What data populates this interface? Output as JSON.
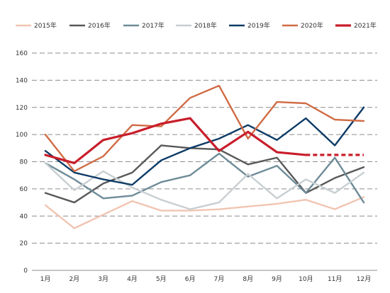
{
  "chart_data": {
    "type": "line",
    "categories": [
      "1月",
      "2月",
      "3月",
      "4月",
      "5月",
      "6月",
      "7月",
      "8月",
      "9月",
      "10月",
      "11月",
      "12月"
    ],
    "ylim": [
      0,
      160
    ],
    "yticks": [
      0,
      20,
      40,
      60,
      80,
      100,
      120,
      140,
      160
    ],
    "grid": true,
    "legend_position": "top",
    "series": [
      {
        "name": "2015年",
        "color": "#f1c5b2",
        "values": [
          48,
          31,
          41,
          51,
          44,
          44,
          45,
          47,
          49,
          52,
          45,
          54
        ]
      },
      {
        "name": "2016年",
        "color": "#595959",
        "values": [
          57,
          50,
          64,
          72,
          92,
          90,
          89,
          78,
          83,
          57,
          68,
          76
        ]
      },
      {
        "name": "2017年",
        "color": "#6e8b98",
        "values": [
          79,
          67,
          53,
          55,
          65,
          70,
          86,
          69,
          77,
          57,
          83,
          50
        ]
      },
      {
        "name": "2018年",
        "color": "#c8cfd2",
        "values": [
          79,
          59,
          73,
          61,
          52,
          45,
          50,
          71,
          53,
          67,
          57,
          72
        ]
      },
      {
        "name": "2019年",
        "color": "#0d3b66",
        "values": [
          88,
          72,
          67,
          63,
          81,
          90,
          97,
          107,
          96,
          112,
          92,
          120
        ]
      },
      {
        "name": "2020年",
        "color": "#d06b45",
        "values": [
          100,
          73,
          84,
          107,
          106,
          127,
          136,
          97,
          124,
          123,
          111,
          110
        ]
      },
      {
        "name": "2021年",
        "color": "#c81e2b",
        "values": [
          85,
          79,
          96,
          101,
          108,
          112,
          88,
          102,
          87,
          85,
          85,
          85
        ],
        "dashed_from_index": 9
      }
    ]
  }
}
